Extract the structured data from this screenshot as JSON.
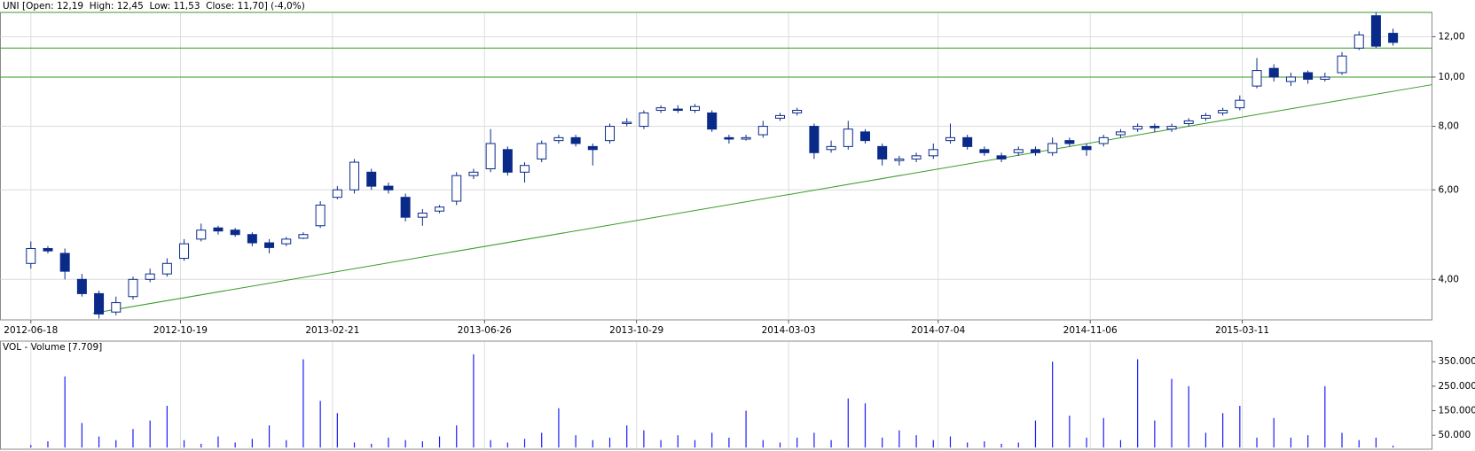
{
  "chart_data": [
    {
      "type": "candlestick",
      "title": "UNI [Open: 12,19  High: 12,45  Low: 11,53  Close: 11,70] (-4,0%)",
      "log_scale": true,
      "grid": true,
      "up_color": "#ffffff",
      "down_color": "#0a2a8a",
      "edge_color": "#0a2a8a",
      "line_color": "#3a9a2a",
      "xlim": [
        "2012-05-24",
        "2015-08-14"
      ],
      "xticks": [
        "2012-06-18",
        "2012-10-19",
        "2013-02-21",
        "2013-06-26",
        "2013-10-29",
        "2014-03-03",
        "2014-07-04",
        "2014-11-06",
        "2015-03-11"
      ],
      "ylim": [
        3.33,
        13.4
      ],
      "yticks": [
        {
          "value": 4,
          "label": "4,00"
        },
        {
          "value": 6,
          "label": "6,00"
        },
        {
          "value": 8,
          "label": "8,00"
        },
        {
          "value": 10,
          "label": "10,00"
        },
        {
          "value": 12,
          "label": "12,00"
        }
      ],
      "hlines": [
        13.4,
        11.4,
        10
      ],
      "trendline": {
        "x": [
          "2012-08-08",
          "2015-08-14"
        ],
        "y": [
          3.43,
          9.66
        ]
      },
      "x": [
        "2012-06-18",
        "2012-07-02",
        "2012-07-16",
        "2012-07-30",
        "2012-08-13",
        "2012-08-27",
        "2012-09-10",
        "2012-09-24",
        "2012-10-08",
        "2012-10-22",
        "2012-11-05",
        "2012-11-19",
        "2012-12-03",
        "2012-12-17",
        "2012-12-31",
        "2013-01-14",
        "2013-01-28",
        "2013-02-11",
        "2013-02-25",
        "2013-03-11",
        "2013-03-25",
        "2013-04-08",
        "2013-04-22",
        "2013-05-06",
        "2013-05-20",
        "2013-06-03",
        "2013-06-17",
        "2013-07-01",
        "2013-07-15",
        "2013-07-29",
        "2013-08-12",
        "2013-08-26",
        "2013-09-09",
        "2013-09-23",
        "2013-10-07",
        "2013-10-21",
        "2013-11-04",
        "2013-11-18",
        "2013-12-02",
        "2013-12-16",
        "2013-12-30",
        "2014-01-13",
        "2014-01-27",
        "2014-02-10",
        "2014-02-24",
        "2014-03-10",
        "2014-03-24",
        "2014-04-07",
        "2014-04-21",
        "2014-05-05",
        "2014-05-19",
        "2014-06-02",
        "2014-06-16",
        "2014-06-30",
        "2014-07-14",
        "2014-07-28",
        "2014-08-11",
        "2014-08-25",
        "2014-09-08",
        "2014-09-22",
        "2014-10-06",
        "2014-10-20",
        "2014-11-03",
        "2014-11-17",
        "2014-12-01",
        "2014-12-15",
        "2014-12-29",
        "2015-01-12",
        "2015-01-26",
        "2015-02-09",
        "2015-02-23",
        "2015-03-09",
        "2015-03-23",
        "2015-04-06",
        "2015-04-20",
        "2015-05-04",
        "2015-05-18",
        "2015-06-01",
        "2015-06-15",
        "2015-06-29",
        "2015-07-13"
      ],
      "open": [
        4.3,
        4.6,
        4.5,
        4.0,
        3.75,
        3.45,
        3.7,
        4.0,
        4.1,
        4.4,
        4.8,
        5.05,
        5.0,
        4.9,
        4.72,
        4.7,
        4.82,
        5.1,
        5.8,
        6.0,
        6.5,
        6.1,
        5.8,
        5.3,
        5.45,
        5.7,
        6.4,
        6.6,
        7.2,
        6.5,
        6.9,
        7.5,
        7.6,
        7.3,
        7.5,
        8.1,
        8.0,
        8.6,
        8.65,
        8.6,
        8.5,
        7.6,
        7.55,
        7.7,
        8.3,
        8.5,
        8.0,
        7.2,
        7.3,
        7.8,
        7.3,
        6.85,
        6.9,
        7.0,
        7.5,
        7.6,
        7.2,
        7.0,
        7.1,
        7.2,
        7.1,
        7.5,
        7.3,
        7.4,
        7.7,
        7.9,
        8.0,
        7.9,
        8.1,
        8.3,
        8.5,
        8.7,
        9.6,
        10.4,
        9.8,
        10.2,
        9.9,
        10.2,
        11.4,
        13.2,
        12.19
      ],
      "high": [
        4.75,
        4.65,
        4.6,
        4.1,
        3.8,
        3.7,
        4.05,
        4.2,
        4.4,
        4.8,
        5.15,
        5.1,
        5.05,
        4.95,
        4.8,
        4.85,
        4.95,
        5.7,
        6.1,
        6.9,
        6.6,
        6.2,
        5.9,
        5.5,
        5.6,
        6.5,
        6.6,
        7.9,
        7.3,
        6.8,
        7.5,
        7.7,
        7.7,
        7.4,
        8.1,
        8.3,
        8.6,
        8.8,
        8.8,
        8.85,
        8.6,
        7.7,
        7.7,
        8.2,
        8.5,
        8.7,
        8.1,
        7.5,
        8.2,
        7.9,
        7.4,
        7.0,
        7.1,
        7.4,
        8.1,
        7.7,
        7.3,
        7.1,
        7.3,
        7.3,
        7.6,
        7.6,
        7.4,
        7.7,
        7.9,
        8.1,
        8.1,
        8.1,
        8.3,
        8.5,
        8.7,
        9.2,
        10.9,
        10.6,
        10.2,
        10.3,
        10.2,
        11.2,
        12.3,
        13.4,
        12.45
      ],
      "low": [
        4.2,
        4.5,
        4.0,
        3.7,
        3.35,
        3.4,
        3.65,
        3.95,
        4.05,
        4.35,
        4.75,
        4.9,
        4.85,
        4.65,
        4.5,
        4.65,
        4.8,
        5.05,
        5.75,
        5.9,
        6.0,
        5.9,
        5.2,
        5.1,
        5.4,
        5.6,
        6.3,
        6.5,
        6.4,
        6.2,
        6.8,
        7.4,
        7.3,
        6.7,
        7.4,
        8.0,
        7.9,
        8.5,
        8.5,
        8.5,
        7.8,
        7.4,
        7.5,
        7.6,
        8.2,
        8.4,
        6.9,
        7.1,
        7.2,
        7.4,
        6.7,
        6.7,
        6.8,
        6.9,
        7.4,
        7.2,
        7.0,
        6.8,
        7.0,
        7.0,
        7.0,
        7.3,
        7.0,
        7.3,
        7.6,
        7.8,
        7.8,
        7.8,
        8.0,
        8.2,
        8.4,
        8.6,
        9.5,
        9.8,
        9.6,
        9.7,
        9.8,
        10.1,
        11.3,
        11.4,
        11.53
      ],
      "close": [
        4.6,
        4.55,
        4.15,
        3.75,
        3.42,
        3.6,
        4.0,
        4.1,
        4.3,
        4.7,
        5.0,
        4.98,
        4.9,
        4.72,
        4.62,
        4.8,
        4.9,
        5.6,
        6.0,
        6.8,
        6.1,
        6.0,
        5.3,
        5.4,
        5.55,
        6.4,
        6.5,
        7.4,
        6.5,
        6.7,
        7.4,
        7.6,
        7.4,
        7.2,
        8.0,
        8.15,
        8.5,
        8.7,
        8.6,
        8.75,
        7.9,
        7.55,
        7.6,
        8.0,
        8.4,
        8.6,
        7.1,
        7.3,
        7.9,
        7.5,
        6.9,
        6.9,
        7.0,
        7.2,
        7.6,
        7.3,
        7.1,
        6.9,
        7.2,
        7.1,
        7.4,
        7.4,
        7.2,
        7.6,
        7.8,
        8.0,
        7.95,
        8.0,
        8.2,
        8.4,
        8.6,
        9.0,
        10.3,
        10.0,
        10.0,
        9.9,
        10.0,
        11.0,
        12.1,
        11.5,
        11.7
      ]
    },
    {
      "type": "volume",
      "title": "VOL - Volume [7.709]",
      "color": "#1a1aff",
      "grid": true,
      "ylim": [
        0,
        434000
      ],
      "yticks": [
        {
          "value": 50000,
          "label": "50.000"
        },
        {
          "value": 150000,
          "label": "150.000"
        },
        {
          "value": 250000,
          "label": "250.000"
        },
        {
          "value": 350000,
          "label": "350.000"
        }
      ],
      "values": [
        10000,
        25000,
        290000,
        100000,
        45000,
        30000,
        75000,
        110000,
        170000,
        30000,
        15000,
        45000,
        20000,
        35000,
        90000,
        30000,
        360000,
        190000,
        140000,
        20000,
        15000,
        40000,
        30000,
        25000,
        45000,
        90000,
        380000,
        30000,
        20000,
        35000,
        60000,
        160000,
        50000,
        30000,
        40000,
        90000,
        70000,
        30000,
        50000,
        30000,
        60000,
        40000,
        150000,
        30000,
        20000,
        40000,
        60000,
        30000,
        200000,
        180000,
        40000,
        70000,
        50000,
        30000,
        45000,
        20000,
        25000,
        15000,
        20000,
        110000,
        350000,
        130000,
        40000,
        120000,
        30000,
        360000,
        110000,
        280000,
        250000,
        60000,
        140000,
        170000,
        40000,
        120000,
        40000,
        50000,
        250000,
        60000,
        30000,
        40000,
        7709
      ]
    }
  ]
}
